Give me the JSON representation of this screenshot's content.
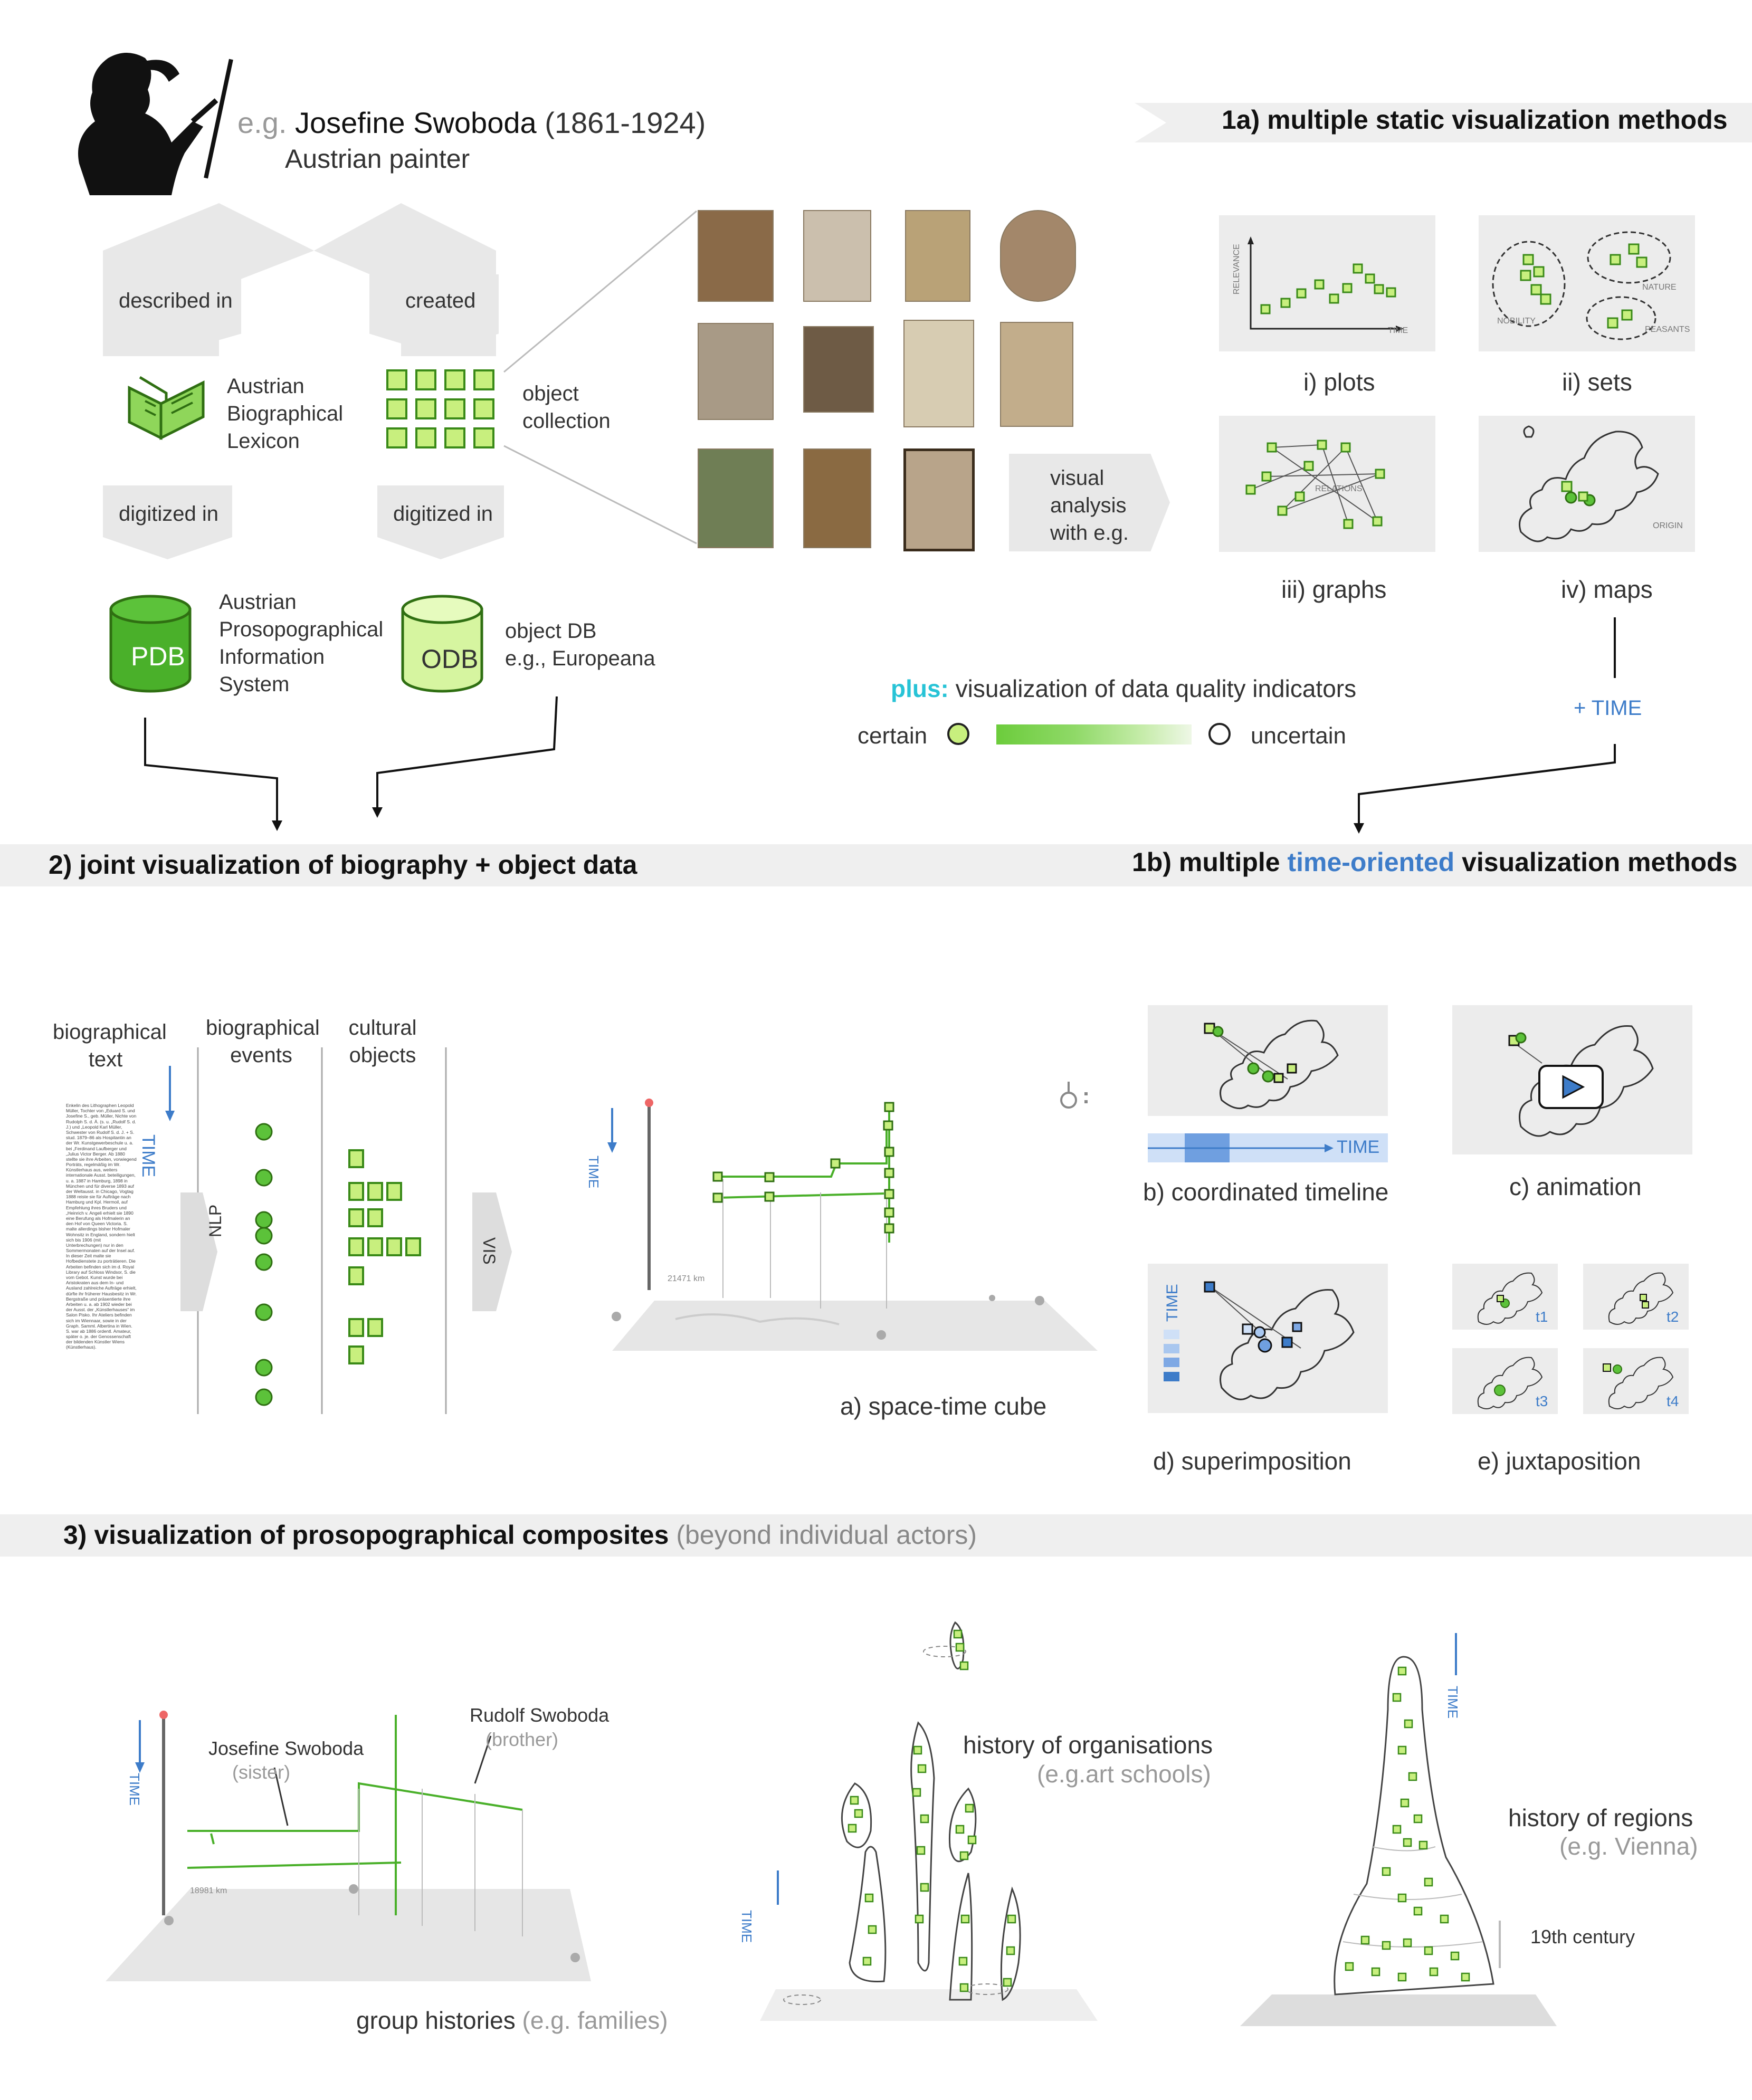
{
  "header": {
    "eg": "e.g.",
    "name": "Josefine Swoboda",
    "years": "(1861-1924)",
    "role": "Austrian painter"
  },
  "flow": {
    "described_in": "described in",
    "created": "created",
    "lexicon": [
      "Austrian",
      "Biographical",
      "Lexicon"
    ],
    "object_collection": [
      "object",
      "collection"
    ],
    "digitized_in_1": "digitized in",
    "digitized_in_2": "digitized in",
    "pdb_label": "PDB",
    "pdb_desc": [
      "Austrian",
      "Prosopographical",
      "Information",
      "System"
    ],
    "odb_label": "ODB",
    "odb_desc": [
      "object DB",
      "e.g., Europeana"
    ],
    "visual_analysis": [
      "visual",
      "analysis",
      "with e.g."
    ]
  },
  "section1a": {
    "title": "1a)  multiple static visualization methods",
    "methods": [
      "i) plots",
      "ii) sets",
      "iii) graphs",
      "iv) maps"
    ],
    "plot_axis_y": "RELEVANCE",
    "plot_axis_x": "TIME",
    "set_labels": [
      "NOBILITY",
      "NATURE",
      "PEASANTS"
    ],
    "graph_label": "RELATIONS",
    "map_label": "ORIGIN",
    "plus_time": "+ TIME"
  },
  "quality": {
    "plus": "plus:",
    "text": "visualization of data quality indicators",
    "certain": "certain",
    "uncertain": "uncertain",
    "colors": {
      "certain": "#c8ef7e",
      "gradient": "#6ccc3c"
    }
  },
  "section2": {
    "title": "2)  joint visualization of biography + object data",
    "col_text": [
      "biographical",
      "text"
    ],
    "col_events": [
      "biographical",
      "events"
    ],
    "col_objects": [
      "cultural",
      "objects"
    ],
    "time": "TIME",
    "nlp": "NLP",
    "vis": "VIS",
    "bio_text": "Enkelin des Lithographen Leopold Müller, Tochter von „Eduard S. und Josefine S., geb. Müller, Nichte von Rudolph S. d. Ä. (s. u. „Rudolf S. d. J.) und „Leopold Karl Müller, Schwester von Rudolf S. d. J. + S. stud. 1879–86 als Hospitantin an der Wr. Kunstgewerbeschule u. a. bei „Ferdinand Laufberger und „Julius Victor Berger. Ab 1880 stellte sie ihre Arbeiten, vorwiegend Porträts, regelmäßig im Wr. Künstlerhaus aus, weiters internationale Ausst. beteiligungen, u. a. 1887 in Hamburg, 1898 in München und für diverse 1893 auf der Weltausst. in Chicago, Vogtag 1888 reiste sie für Aufträge nach Hamburg und Kpl. Hermoil, auf Empfehlung ihres Bruders und „Heinrich v. Angeli erhielt sie 1890 eine Berufung als Hofmalerin an den Hof von Queen Victoria. S. malte allerdings bisher Hofmaler Wohnsitz in England, sondern hielt sich bis 1906 (mit Unterbrechungen) nur in den Sommermonaten auf der Insel auf. In dieser Zeit malte sie Hofbedienstete zu porträtieren. Die Arbeiten befinden sich im d. Royal Library auf Schloss Windsor, S. die vom Gebot. Kunst wurde bei Aristokraten aus dem In- und Ausland zahlreiche Aufträge erhielt, dürfte ihr früherer Hausbesitz in Wr. Bergstraße und präsentierte ihre Arbeiten u. a. ab 1902 wieder bei der Ausst. der „Künstlerhauses“ im Salon Pisko. Ihr Ateliers befinden sich im Wiennaar, sowie in der Graph. Samml. Albertina in Wien. S. war ab 1886 ordentl. Amateur, später o. je. der Genossenschaft der bildenden Künstler Wiens (Künstlerhaus).",
    "cube_caption": "a) space-time cube",
    "cube_distance": "21471 km",
    "b_caption": "b) coordinated timeline",
    "c_caption": "c) animation",
    "d_caption": "d) superimposition",
    "e_caption": "e) juxtaposition",
    "juxta_labels": [
      "t1",
      "t2",
      "t3",
      "t4"
    ]
  },
  "section1b": {
    "title_pre": "1b)  multiple ",
    "title_hl": "time-oriented",
    "title_post": " visualization methods",
    "hl_color": "#3d7cc9"
  },
  "section3": {
    "title": "3)  visualization of prosopographical composites",
    "subtitle": "(beyond individual actors)",
    "josefine": "Josefine Swoboda",
    "sister": "(sister)",
    "rudolf": "Rudolf Swoboda",
    "brother": "(brother)",
    "group_caption": "group histories",
    "group_eg": "(e.g. families)",
    "group_distance": "18981 km",
    "org_title": "history of organisations",
    "org_eg": "(e.g.art schools)",
    "regions_title": "history of regions",
    "regions_eg": "(e.g. Vienna)",
    "century": "19th century"
  },
  "colors": {
    "green_dark": "#3a8a18",
    "green_fill": "#c8ef7e",
    "blue": "#3d7cc9",
    "cyan": "#27c3d6",
    "band": "#efefef"
  }
}
